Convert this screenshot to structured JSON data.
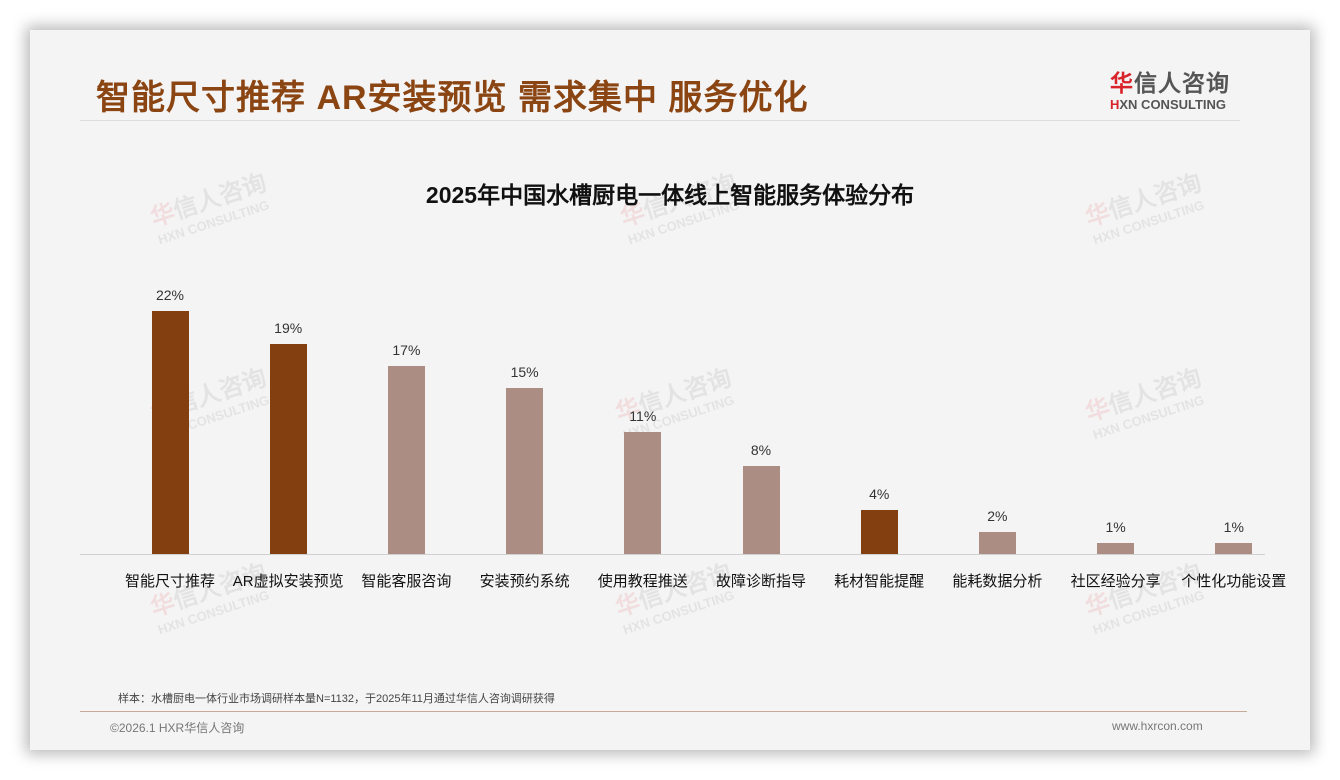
{
  "header": {
    "headline": "智能尺寸推荐 AR安装预览 需求集中 服务优化",
    "logo_cn_prefix": "华",
    "logo_cn_rest": "信人咨询",
    "logo_en_prefix": "H",
    "logo_en_rest": "XN CONSULTING"
  },
  "watermark": {
    "cn_prefix": "华",
    "cn_rest": "信人咨询",
    "en": "HXN CONSULTING"
  },
  "colors": {
    "highlight": "#843f10",
    "normal": "#ab8d83",
    "headline": "#8b4513",
    "logo_red": "#d9232a"
  },
  "chart_data": {
    "type": "bar",
    "title": "2025年中国水槽厨电一体线上智能服务体验分布",
    "xlabel": "",
    "ylabel": "",
    "ylim": [
      0,
      25
    ],
    "grid": false,
    "legend": "none",
    "categories": [
      "智能尺寸推荐",
      "AR虚拟安装预览",
      "智能客服咨询",
      "安装预约系统",
      "使用教程推送",
      "故障诊断指导",
      "耗材智能提醒",
      "能耗数据分析",
      "社区经验分享",
      "个性化功能设置"
    ],
    "values": [
      22,
      19,
      17,
      15,
      11,
      8,
      4,
      2,
      1,
      1
    ],
    "value_labels": [
      "22%",
      "19%",
      "17%",
      "15%",
      "11%",
      "8%",
      "4%",
      "2%",
      "1%",
      "1%"
    ],
    "highlighted": [
      true,
      true,
      false,
      false,
      false,
      false,
      true,
      false,
      false,
      false
    ],
    "unit": "%"
  },
  "footer": {
    "note": "样本：水槽厨电一体行业市场调研样本量N=1132，于2025年11月通过华信人咨询调研获得",
    "copyright": "©2026.1 HXR华信人咨询",
    "website": "www.hxrcon.com"
  }
}
